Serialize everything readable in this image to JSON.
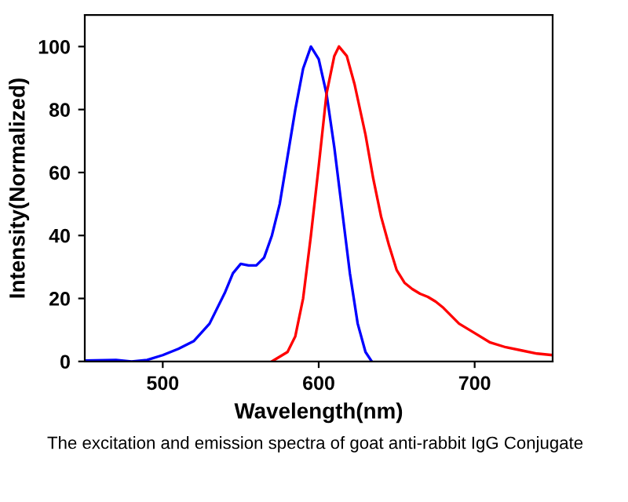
{
  "chart_data": {
    "type": "line",
    "xlabel": "Wavelength(nm)",
    "ylabel": "Intensity(Normalized)",
    "xlim": [
      450,
      750
    ],
    "ylim": [
      0,
      110
    ],
    "xticks": [
      500,
      600,
      700
    ],
    "yticks": [
      0,
      20,
      40,
      60,
      80,
      100
    ],
    "grid": false,
    "marker": "none",
    "line_style": "solid",
    "series": [
      {
        "color": "#0000ff",
        "x": [
          450,
          470,
          480,
          490,
          500,
          510,
          520,
          530,
          540,
          545,
          550,
          555,
          560,
          565,
          570,
          575,
          580,
          585,
          590,
          595,
          600,
          605,
          610,
          615,
          620,
          625,
          630,
          634
        ],
        "values": [
          0.3,
          0.5,
          0,
          0.5,
          2,
          4,
          6.5,
          12,
          22,
          28,
          31,
          30.5,
          30.5,
          33,
          40,
          50,
          65,
          80,
          93,
          100,
          96,
          85,
          68,
          48,
          28,
          12,
          3,
          0
        ]
      },
      {
        "color": "#ff0000",
        "x": [
          570,
          580,
          585,
          590,
          595,
          600,
          605,
          610,
          613,
          618,
          623,
          630,
          635,
          640,
          645,
          650,
          655,
          660,
          665,
          670,
          675,
          680,
          690,
          700,
          710,
          720,
          730,
          740,
          750
        ],
        "values": [
          0,
          3,
          8,
          20,
          40,
          62,
          85,
          97,
          100,
          97,
          88,
          72,
          58,
          46,
          37,
          29,
          25,
          23,
          21.5,
          20.5,
          19,
          17,
          12,
          9,
          6,
          4.5,
          3.5,
          2.5,
          2
        ]
      }
    ],
    "annotations": [
      "The excitation and emission spectra of goat anti-rabbit IgG Conjugate"
    ]
  }
}
